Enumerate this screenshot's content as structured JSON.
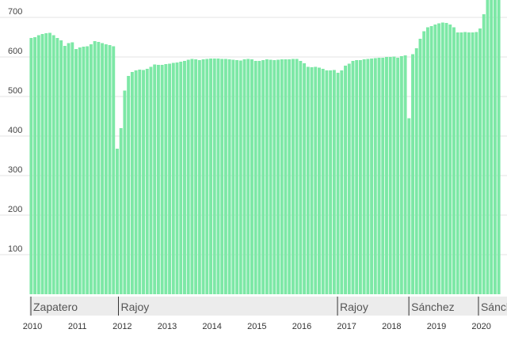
{
  "chart_data": {
    "type": "bar",
    "color": "#7de8a6",
    "categories": [
      null,
      null,
      null,
      null,
      null,
      null,
      null,
      null,
      null,
      null,
      null,
      null,
      null,
      null,
      null,
      null,
      null,
      null,
      null,
      null,
      null,
      null,
      null,
      null,
      null,
      null,
      null,
      null,
      null,
      null,
      null,
      null,
      null,
      null,
      null,
      null,
      null,
      null,
      null,
      null,
      null,
      null,
      null,
      null,
      null,
      null,
      null,
      null,
      null,
      null,
      null,
      null,
      null,
      null,
      null,
      null,
      null,
      null,
      null,
      null,
      null,
      null,
      null,
      null,
      null,
      null,
      null,
      null,
      null,
      null,
      null,
      null,
      null,
      null,
      null,
      null,
      null,
      null,
      null,
      null,
      null,
      null,
      null,
      null,
      null,
      null,
      null,
      null,
      null,
      null,
      null,
      null,
      null,
      null,
      null,
      null,
      null,
      null,
      null,
      null,
      null,
      null,
      null,
      null,
      null,
      null,
      null,
      null,
      null,
      null,
      null,
      null,
      null,
      null,
      null,
      null,
      null,
      null,
      null,
      null,
      null,
      null,
      null,
      null,
      null,
      null
    ],
    "values": [
      648,
      650,
      655,
      658,
      660,
      661,
      655,
      648,
      642,
      628,
      635,
      637,
      620,
      624,
      626,
      627,
      632,
      640,
      638,
      635,
      632,
      630,
      627,
      368,
      420,
      515,
      552,
      562,
      566,
      568,
      567,
      570,
      575,
      581,
      580,
      580,
      582,
      583,
      585,
      586,
      588,
      590,
      593,
      595,
      594,
      592,
      594,
      595,
      596,
      596,
      596,
      595,
      595,
      594,
      593,
      592,
      591,
      594,
      595,
      594,
      590,
      590,
      592,
      594,
      593,
      592,
      593,
      594,
      594,
      594,
      595,
      595,
      590,
      584,
      575,
      574,
      575,
      573,
      570,
      566,
      566,
      567,
      560,
      566,
      578,
      583,
      590,
      592,
      592,
      594,
      595,
      596,
      597,
      598,
      598,
      600,
      600,
      601,
      598,
      602,
      604,
      445,
      607,
      622,
      646,
      665,
      675,
      678,
      682,
      685,
      687,
      686,
      682,
      675,
      662,
      662,
      663,
      662,
      662,
      663,
      672,
      708,
      745,
      760,
      770,
      775
    ],
    "ylim": [
      0,
      744
    ],
    "yticks": [
      100,
      200,
      300,
      400,
      500,
      600,
      700
    ],
    "grid": true,
    "xlim": [
      2010,
      2020.5
    ],
    "xticks": [
      2010,
      2011,
      2012,
      2013,
      2014,
      2015,
      2016,
      2017,
      2018,
      2019,
      2020
    ],
    "periods": [
      {
        "label": "Zapatero",
        "start": 2010
      },
      {
        "label": "Rajoy",
        "start": 2011.95
      },
      {
        "label": "Rajoy",
        "start": 2016.83
      },
      {
        "label": "Sánchez",
        "start": 2018.42
      },
      {
        "label": "Sánchez",
        "start": 2019.97
      }
    ]
  }
}
